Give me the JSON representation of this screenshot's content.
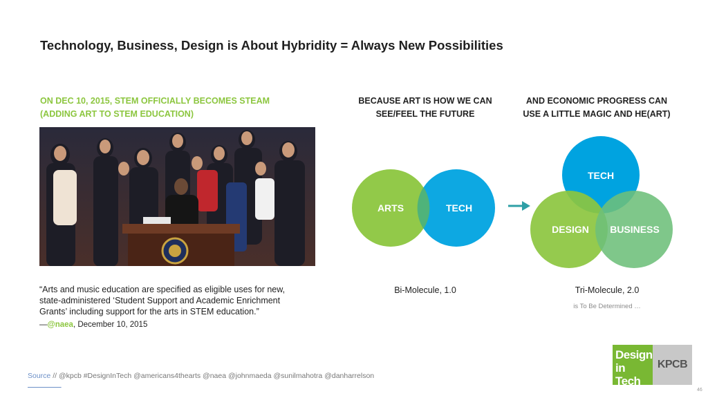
{
  "title": "Technology, Business, Design is About Hybridity = Always New Possibilities",
  "left": {
    "heading_line1": "ON DEC 10, 2015, STEM OFFICIALLY BECOMES STEAM",
    "heading_line2": "(ADDING ART TO STEM EDUCATION)",
    "quote_line1": "“Arts and music education are specified as eligible uses for new,",
    "quote_line2": "state-administered ‘Student Support and Academic Enrichment",
    "quote_line3": "Grants’ including support for the arts in STEM education.”",
    "attribution_dash": "—",
    "attribution_handle": "@naea",
    "attribution_date": ", December 10, 2015"
  },
  "middle": {
    "heading_line1": "BECAUSE ART IS HOW WE CAN",
    "heading_line2": "SEE/FEEL THE FUTURE",
    "circle_arts": "ARTS",
    "circle_tech": "TECH",
    "caption": "Bi-Molecule, 1.0"
  },
  "right": {
    "heading_line1": "AND ECONOMIC PROGRESS CAN",
    "heading_line2": "USE A LITTLE MAGIC AND HE(ART)",
    "circle_tech": "TECH",
    "circle_design": "DESIGN",
    "circle_business": "BUSINESS",
    "caption": "Tri-Molecule, 2.0",
    "subcaption": "is To Be Determined …"
  },
  "footer": {
    "source_label": "Source",
    "source_text": " // @kpcb #DesignInTech @americans4thearts @naea @johnmaeda @sunilmahotra @danharrelson",
    "logo_design_line1": "Design",
    "logo_design_line2": "in Tech",
    "logo_kpcb": "KPCB",
    "page_number": "46"
  },
  "colors": {
    "green": "#8cc63f",
    "blue": "#00a3e0",
    "teal": "#2e9fa6",
    "business_green": "#6dbf7a"
  }
}
